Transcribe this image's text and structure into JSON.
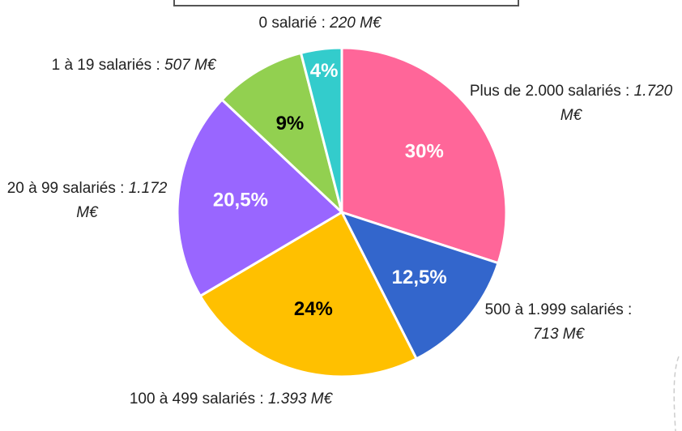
{
  "chart_data": {
    "type": "pie",
    "categories": [
      "Plus de 2.000 salariés :",
      "500 à 1.999 salariés :",
      "100 à 499 salariés :",
      "20 à 99 salariés :",
      "1 à 19 salariés :",
      "0 salarié :"
    ],
    "amounts": [
      "1.720 M€",
      "713 M€",
      "1.393 M€",
      "1.172 M€",
      "507 M€",
      "220 M€"
    ],
    "values": [
      30,
      12.5,
      24,
      20.5,
      9,
      4
    ],
    "value_labels": [
      "30%",
      "12,5%",
      "24%",
      "20,5%",
      "9%",
      "4%"
    ],
    "colors": [
      "#ff6699",
      "#3366cc",
      "#ffc000",
      "#9966ff",
      "#92d050",
      "#33cccc"
    ],
    "label_colors": [
      "#ffffff",
      "#ffffff",
      "#000000",
      "#ffffff",
      "#000000",
      "#ffffff"
    ]
  }
}
